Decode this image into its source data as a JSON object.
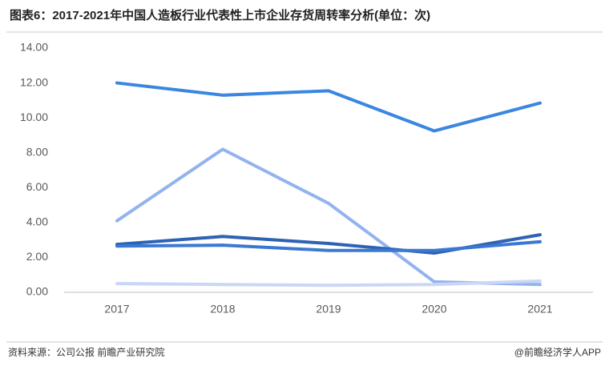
{
  "chart_data": {
    "type": "line",
    "title": "图表6：2017-2021年中国人造板行业代表性上市企业存货周转率分析(单位：次)",
    "source": "资料来源：公司公报 前瞻产业研究院",
    "brand": "@前瞻经济学人APP",
    "categories": [
      "2017",
      "2018",
      "2019",
      "2020",
      "2021"
    ],
    "series": [
      {
        "color": "#3a86e0",
        "values": [
          12.0,
          11.3,
          11.55,
          9.25,
          10.85
        ]
      },
      {
        "color": "#93b3ef",
        "values": [
          4.1,
          8.2,
          5.1,
          0.6,
          0.45
        ]
      },
      {
        "color": "#2e62b4",
        "values": [
          2.75,
          3.2,
          2.8,
          2.25,
          3.3
        ]
      },
      {
        "color": "#3b78d2",
        "values": [
          2.65,
          2.7,
          2.4,
          2.4,
          2.9
        ]
      },
      {
        "color": "#c9d6f6",
        "values": [
          0.5,
          0.45,
          0.4,
          0.45,
          0.65
        ]
      }
    ],
    "ylim": [
      0,
      14
    ],
    "yticks": [
      {
        "value": 0,
        "label": "0.00"
      },
      {
        "value": 2,
        "label": "2.00"
      },
      {
        "value": 4,
        "label": "4.00"
      },
      {
        "value": 6,
        "label": "6.00"
      },
      {
        "value": 8,
        "label": "8.00"
      },
      {
        "value": 10,
        "label": "10.00"
      },
      {
        "value": 12,
        "label": "12.00"
      },
      {
        "value": 14,
        "label": "14.00"
      }
    ],
    "grid": false
  }
}
